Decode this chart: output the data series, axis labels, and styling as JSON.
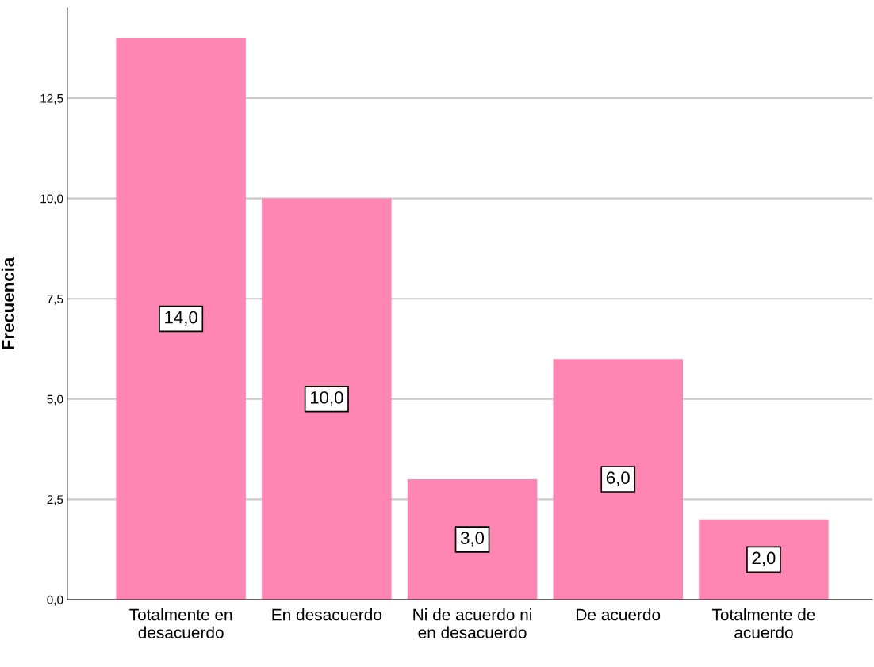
{
  "chart_data": {
    "type": "bar",
    "ylabel": "Frecuencia",
    "categories": [
      "Totalmente en\ndesacuerdo",
      "En desacuerdo",
      "Ni de acuerdo ni\nen desacuerdo",
      "De acuerdo",
      "Totalmente de\nacuerdo"
    ],
    "values": [
      14,
      10,
      3,
      6,
      2
    ],
    "value_labels": [
      "14,0",
      "10,0",
      "3,0",
      "6,0",
      "2,0"
    ],
    "color": "#ff85b3",
    "ylim": [
      0,
      14.75
    ],
    "yticks": [
      {
        "value": 0,
        "label": "0,0"
      },
      {
        "value": 2.5,
        "label": "2,5"
      },
      {
        "value": 5,
        "label": "5,0"
      },
      {
        "value": 7.5,
        "label": "7,5"
      },
      {
        "value": 10,
        "label": "10,0"
      },
      {
        "value": 12.5,
        "label": "12,5"
      }
    ],
    "grid": "y"
  }
}
